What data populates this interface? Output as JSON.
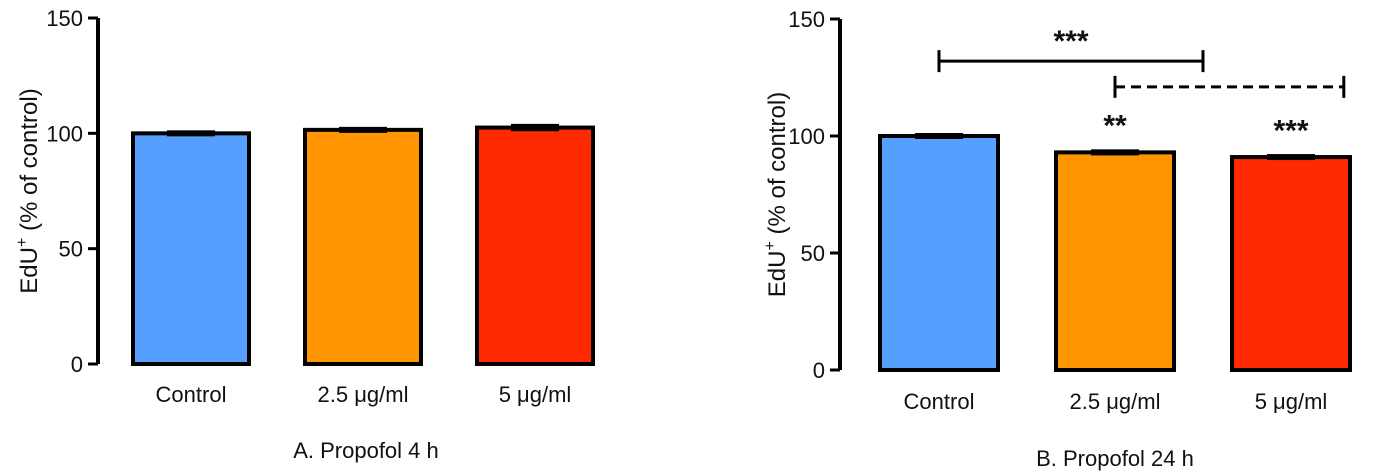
{
  "chart_data": [
    {
      "type": "bar",
      "title": "A. Propofol 4 h",
      "ylabel_main": "EdU",
      "ylabel_sup": "+",
      "ylabel_rest": " (% of control)",
      "ylim": [
        0,
        150
      ],
      "yticks": [
        "0",
        "50",
        "100",
        "150"
      ],
      "categories": [
        "Control",
        "2.5 μg/ml",
        "5 μg/ml"
      ],
      "values": [
        100,
        101.5,
        102.5
      ],
      "errors": [
        1.2,
        0.8,
        1.6
      ],
      "colors": [
        "#55A0FF",
        "#FF9500",
        "#FF2A00"
      ],
      "annotations": []
    },
    {
      "type": "bar",
      "title": "B. Propofol 24 h",
      "ylabel_main": "EdU",
      "ylabel_sup": "+",
      "ylabel_rest": " (% of control)",
      "ylim": [
        0,
        150
      ],
      "yticks": [
        "0",
        "50",
        "100",
        "150"
      ],
      "categories": [
        "Control",
        "2.5 μg/ml",
        "5 μg/ml"
      ],
      "values": [
        100,
        93,
        91
      ],
      "errors": [
        1.0,
        1.3,
        1.0
      ],
      "colors": [
        "#55A0FF",
        "#FF9500",
        "#FF2A00"
      ],
      "annotations": [
        {
          "text": "**",
          "bar": 1
        },
        {
          "text": "***",
          "bar": 2
        }
      ],
      "brackets": [
        {
          "from": 0,
          "to": 1.5,
          "y": 132,
          "style": "solid",
          "text": "***"
        },
        {
          "from": 1,
          "to": 2.3,
          "y": 121,
          "style": "dashed",
          "text": ""
        }
      ]
    }
  ]
}
